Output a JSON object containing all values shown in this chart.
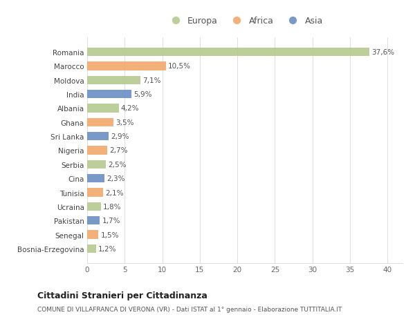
{
  "countries": [
    "Bosnia-Erzegovina",
    "Senegal",
    "Pakistan",
    "Ucraina",
    "Tunisia",
    "Cina",
    "Serbia",
    "Nigeria",
    "Sri Lanka",
    "Ghana",
    "Albania",
    "India",
    "Moldova",
    "Marocco",
    "Romania"
  ],
  "values": [
    1.2,
    1.5,
    1.7,
    1.8,
    2.1,
    2.3,
    2.5,
    2.7,
    2.9,
    3.5,
    4.2,
    5.9,
    7.1,
    10.5,
    37.6
  ],
  "labels": [
    "1,2%",
    "1,5%",
    "1,7%",
    "1,8%",
    "2,1%",
    "2,3%",
    "2,5%",
    "2,7%",
    "2,9%",
    "3,5%",
    "4,2%",
    "5,9%",
    "7,1%",
    "10,5%",
    "37,6%"
  ],
  "continents": [
    "Europa",
    "Africa",
    "Asia",
    "Europa",
    "Africa",
    "Asia",
    "Europa",
    "Africa",
    "Asia",
    "Africa",
    "Europa",
    "Asia",
    "Europa",
    "Africa",
    "Europa"
  ],
  "colors": {
    "Europa": "#b5c98e",
    "Africa": "#f2a96b",
    "Asia": "#6b8fc4"
  },
  "title": "Cittadini Stranieri per Cittadinanza",
  "subtitle": "COMUNE DI VILLAFRANCA DI VERONA (VR) - Dati ISTAT al 1° gennaio - Elaborazione TUTTITALIA.IT",
  "xlim": [
    0,
    42
  ],
  "xticks": [
    0,
    5,
    10,
    15,
    20,
    25,
    30,
    35,
    40
  ],
  "background_color": "#ffffff",
  "plot_bg_color": "#ffffff",
  "grid_color": "#e0e0e0"
}
